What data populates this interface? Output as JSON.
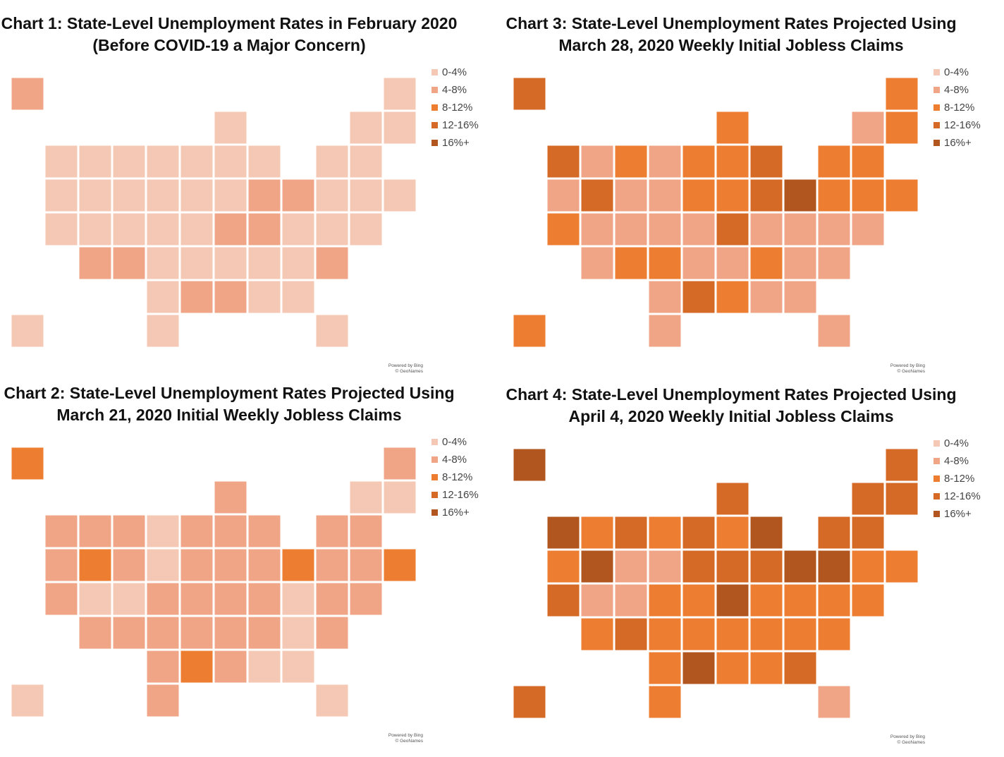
{
  "legend": {
    "labels": [
      "0-4%",
      "4-8%",
      "8-12%",
      "12-16%",
      "16%+"
    ],
    "colors": [
      "#F5C8B5",
      "#F0A587",
      "#ED7D31",
      "#D46A25",
      "#B1561F"
    ]
  },
  "attribution": {
    "line1": "Powered by Bing",
    "line2": "© GeoNames"
  },
  "chart_data": [
    {
      "type": "map",
      "title_line1": "Chart 1: State-Level Unemployment Rates in February 2020",
      "title_line2": "(Before COVID-19 a Major Concern)",
      "default_category": 0,
      "categories": {
        "AZ": 1,
        "NM": 1,
        "LA": 1,
        "MS": 1,
        "AK": 1,
        "KY": 1,
        "WV": 1,
        "OH": 1,
        "PA": 1,
        "DC": 1
      }
    },
    {
      "type": "map",
      "title_line1": "Chart 2: State-Level Unemployment Rates Projected Using",
      "title_line2": "March 21, 2020 Initial Weekly Jobless Claims",
      "default_category": 1,
      "categories": {
        "ND": 0,
        "SD": 0,
        "UT": 0,
        "CO": 0,
        "AL": 0,
        "GA": 0,
        "FL": 0,
        "SC": 0,
        "VA": 0,
        "VT": 0,
        "NH": 0,
        "HI": 0,
        "NV": 2,
        "PA": 2,
        "LA": 2,
        "AK": 2,
        "RI": 2
      }
    },
    {
      "type": "map",
      "title_line1": "Chart 3: State-Level Unemployment Rates Projected Using",
      "title_line2": "March 28, 2020 Weekly Initial Jobless Claims",
      "default_category": 1,
      "categories": {
        "PA": 4,
        "WA": 3,
        "NV": 3,
        "MI": 3,
        "OH": 3,
        "KY": 3,
        "LA": 3,
        "AK": 3,
        "CA": 2,
        "MT": 2,
        "MN": 2,
        "WI": 2,
        "IA": 2,
        "IL": 2,
        "IN": 2,
        "KS": 2,
        "NM": 2,
        "MS": 2,
        "NC": 2,
        "NY": 2,
        "ME": 2,
        "NH": 2,
        "MA": 2,
        "RI": 2,
        "CT": 2,
        "NJ": 2,
        "HI": 2
      }
    },
    {
      "type": "map",
      "title_line1": "Chart 4: State-Level Unemployment Rates Projected Using",
      "title_line2": "April 4, 2020 Weekly Initial Jobless Claims",
      "default_category": 2,
      "categories": {
        "WA": 4,
        "NV": 4,
        "MI": 4,
        "KY": 4,
        "PA": 4,
        "LA": 4,
        "AK": 4,
        "NJ": 4,
        "CA": 3,
        "MT": 3,
        "MN": 3,
        "WI": 3,
        "IA": 3,
        "IN": 3,
        "OH": 3,
        "NM": 3,
        "GA": 3,
        "NY": 3,
        "VT": 3,
        "NH": 3,
        "ME": 3,
        "MA": 3,
        "HI": 3,
        "WY": 1,
        "UT": 1,
        "CO": 1,
        "SD": 1,
        "FL": 1
      }
    }
  ]
}
